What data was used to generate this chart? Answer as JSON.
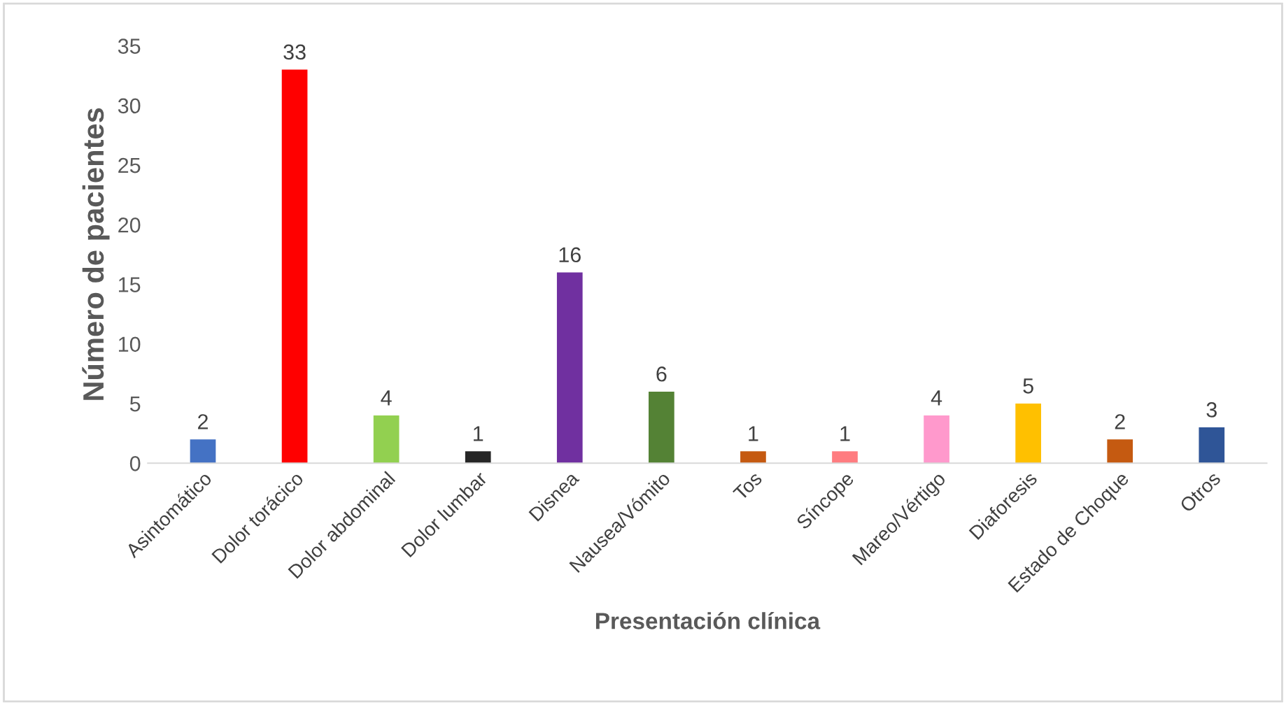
{
  "chart_data": {
    "type": "bar",
    "xlabel": "Presentación clínica",
    "ylabel": "Número de pacientes",
    "categories": [
      "Asintomático",
      "Dolor torácico",
      "Dolor abdominal",
      "Dolor lumbar",
      "Disnea",
      "Nausea/Vómito",
      "Tos",
      "Síncope",
      "Mareo/Vértigo",
      "Diaforesis",
      "Estado de Choque",
      "Otros"
    ],
    "values": [
      2,
      33,
      4,
      1,
      16,
      6,
      1,
      1,
      4,
      5,
      2,
      3
    ],
    "colors": [
      "#4472c4",
      "#ff0000",
      "#92d050",
      "#262626",
      "#7030a0",
      "#548235",
      "#c55a11",
      "#ff7c80",
      "#ff99cc",
      "#ffc000",
      "#c55a11",
      "#2f5597"
    ],
    "ylim": [
      0,
      35
    ],
    "yticks": [
      0,
      5,
      10,
      15,
      20,
      25,
      30,
      35
    ],
    "grid": false,
    "data_labels": true
  }
}
